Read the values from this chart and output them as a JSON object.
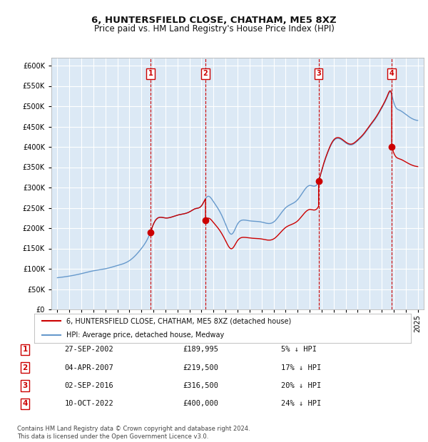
{
  "title": "6, HUNTERSFIELD CLOSE, CHATHAM, ME5 8XZ",
  "subtitle": "Price paid vs. HM Land Registry's House Price Index (HPI)",
  "ylabel": "",
  "background_color": "#ffffff",
  "plot_bg_color": "#dce9f5",
  "grid_color": "#ffffff",
  "sale_color": "#cc0000",
  "hpi_color": "#6699cc",
  "ylim": [
    0,
    620000
  ],
  "yticks": [
    0,
    50000,
    100000,
    150000,
    200000,
    250000,
    300000,
    350000,
    400000,
    450000,
    500000,
    550000,
    600000
  ],
  "sales": [
    {
      "date": "2002-09-27",
      "price": 189995,
      "label": "1",
      "pct": "5%"
    },
    {
      "date": "2007-04-04",
      "price": 219500,
      "label": "2",
      "pct": "17%"
    },
    {
      "date": "2016-09-02",
      "price": 316500,
      "label": "3",
      "pct": "20%"
    },
    {
      "date": "2022-10-10",
      "price": 400000,
      "label": "4",
      "pct": "24%"
    }
  ],
  "legend_sale": "6, HUNTERSFIELD CLOSE, CHATHAM, ME5 8XZ (detached house)",
  "legend_hpi": "HPI: Average price, detached house, Medway",
  "footer": "Contains HM Land Registry data © Crown copyright and database right 2024.\nThis data is licensed under the Open Government Licence v3.0.",
  "table": [
    [
      "1",
      "27-SEP-2002",
      "£189,995",
      "5% ↓ HPI"
    ],
    [
      "2",
      "04-APR-2007",
      "£219,500",
      "17% ↓ HPI"
    ],
    [
      "3",
      "02-SEP-2016",
      "£316,500",
      "20% ↓ HPI"
    ],
    [
      "4",
      "10-OCT-2022",
      "£400,000",
      "24% ↓ HPI"
    ]
  ]
}
